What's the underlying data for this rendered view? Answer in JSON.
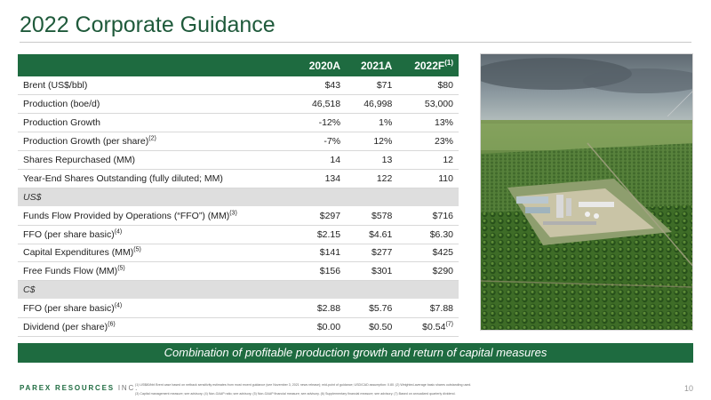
{
  "title": "2022 Corporate Guidance",
  "table": {
    "headers": [
      {
        "text": "2020A",
        "sup": ""
      },
      {
        "text": "2021A",
        "sup": ""
      },
      {
        "text": "2022F",
        "sup": "(1)"
      }
    ],
    "rows": [
      {
        "type": "data",
        "label": "Brent (US$/bbl)",
        "sup": "",
        "values": [
          "$43",
          "$71",
          "$80"
        ]
      },
      {
        "type": "data",
        "label": "Production (boe/d)",
        "sup": "",
        "values": [
          "46,518",
          "46,998",
          "53,000"
        ]
      },
      {
        "type": "data",
        "label": "Production Growth",
        "sup": "",
        "values": [
          "-12%",
          "1%",
          "13%"
        ]
      },
      {
        "type": "data",
        "label": "Production Growth (per share)",
        "sup": "(2)",
        "values": [
          "-7%",
          "12%",
          "23%"
        ]
      },
      {
        "type": "data",
        "label": "Shares Repurchased (MM)",
        "sup": "",
        "values": [
          "14",
          "13",
          "12"
        ]
      },
      {
        "type": "data",
        "label": "Year-End Shares Outstanding (fully diluted; MM)",
        "sup": "",
        "values": [
          "134",
          "122",
          "110"
        ]
      },
      {
        "type": "section",
        "label": "US$"
      },
      {
        "type": "data",
        "label": "Funds Flow Provided by Operations (“FFO”) (MM)",
        "sup": "(3)",
        "values": [
          "$297",
          "$578",
          "$716"
        ]
      },
      {
        "type": "data",
        "label": "FFO (per share basic)",
        "sup": "(4)",
        "values": [
          "$2.15",
          "$4.61",
          "$6.30"
        ]
      },
      {
        "type": "data",
        "label": "Capital Expenditures (MM)",
        "sup": "(5)",
        "values": [
          "$141",
          "$277",
          "$425"
        ]
      },
      {
        "type": "data",
        "label": "Free Funds Flow (MM)",
        "sup": "(5)",
        "values": [
          "$156",
          "$301",
          "$290"
        ]
      },
      {
        "type": "section",
        "label": "C$"
      },
      {
        "type": "data",
        "label": "FFO (per share basic)",
        "sup": "(4)",
        "values": [
          "$2.88",
          "$5.76",
          "$7.88"
        ]
      },
      {
        "type": "data",
        "label": "Dividend (per share)",
        "sup": "(6)",
        "values": [
          "$0.00",
          "$0.50",
          "$0.54"
        ],
        "last_sup": "(7)"
      }
    ]
  },
  "banner": "Combination of profitable production growth and return of capital measures",
  "footer": {
    "brand": "PAREX RESOURCES",
    "brand_suffix": "INC.",
    "footnote_1": "(1) US$80/bbl Brent case based on netback sensitivity estimates from most recent guidance (see November 3, 2021 news release); mid-point of guidance; USD/CAD assumption: 0.80. (2) Weighted-average basic shares outstanding used.",
    "footnote_2": "(3) Capital management measure; see advisory. (4) Non-GAAP ratio; see advisory. (5) Non-GAAP financial measure; see advisory. (6) Supplementary financial measure; see advisory. (7) Based on annualized quarterly dividend.",
    "page": "10"
  },
  "colors": {
    "brand_green": "#1e6b40",
    "section_gray": "#dedede"
  }
}
